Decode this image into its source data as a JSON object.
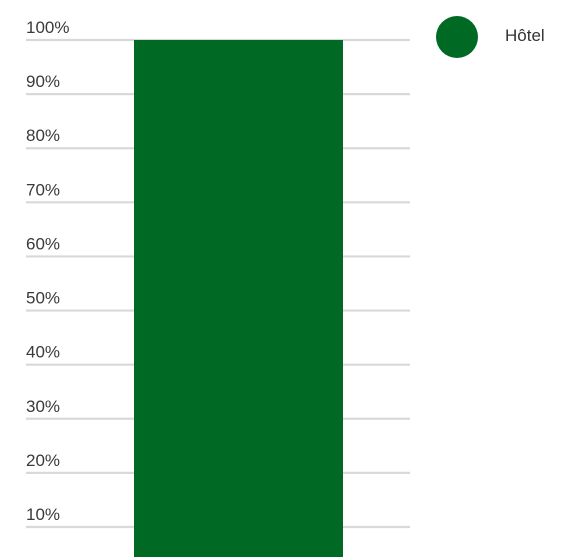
{
  "chart_data": {
    "type": "bar",
    "categories": [
      ""
    ],
    "series": [
      {
        "name": "Hôtel",
        "values": [
          100
        ],
        "color": "#006a25"
      }
    ],
    "ylim": [
      0,
      100
    ],
    "yticks": [
      {
        "value": 100,
        "label": "100%"
      },
      {
        "value": 90,
        "label": "90%"
      },
      {
        "value": 80,
        "label": "80%"
      },
      {
        "value": 70,
        "label": "70%"
      },
      {
        "value": 60,
        "label": "60%"
      },
      {
        "value": 50,
        "label": "50%"
      },
      {
        "value": 40,
        "label": "40%"
      },
      {
        "value": 30,
        "label": "30%"
      },
      {
        "value": 20,
        "label": "20%"
      },
      {
        "value": 10,
        "label": "10%"
      }
    ],
    "grid": true,
    "gridColor": "#d9d9d9",
    "legend": {
      "position": "top-right",
      "marker": "circle"
    }
  }
}
